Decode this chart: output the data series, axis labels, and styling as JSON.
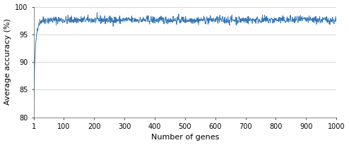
{
  "line_color": "#3878b4",
  "line_width": 0.7,
  "xlabel": "Number of genes",
  "ylabel": "Average accuracy (%)",
  "xlim": [
    1,
    1000
  ],
  "ylim": [
    80,
    100
  ],
  "yticks": [
    80,
    85,
    90,
    95,
    100
  ],
  "xticks": [
    1,
    100,
    200,
    300,
    400,
    500,
    600,
    700,
    800,
    900,
    1000
  ],
  "xtick_labels": [
    "1",
    "100",
    "200",
    "300",
    "400",
    "500",
    "600",
    "700",
    "800",
    "900",
    "1000"
  ],
  "grid_color": "#c8c8c8",
  "background_color": "#ffffff",
  "xlabel_fontsize": 8,
  "ylabel_fontsize": 8,
  "tick_fontsize": 7,
  "seed": 42,
  "noise_amplitude": 0.35,
  "plateau_mean": 97.6,
  "start_val": 83.5,
  "rise_k": 0.18
}
